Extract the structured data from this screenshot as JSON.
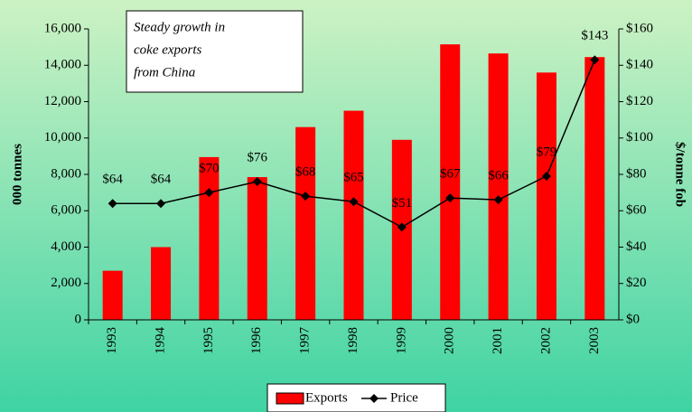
{
  "chart_data": {
    "type": "bar",
    "annotation": [
      "Steady growth in",
      "coke exports",
      "from China"
    ],
    "ylabel": "000 tonnes",
    "y2label": "$/tonne fob",
    "categories": [
      "1993",
      "1994",
      "1995",
      "1996",
      "1997",
      "1998",
      "1999",
      "2000",
      "2001",
      "2002",
      "2003"
    ],
    "series": [
      {
        "name": "Exports",
        "type": "bar",
        "color": "#ff0000",
        "values": [
          2700,
          4000,
          8950,
          7850,
          10600,
          11500,
          9900,
          15150,
          14650,
          13600,
          14450
        ]
      },
      {
        "name": "Price",
        "type": "line",
        "axis": "y2",
        "color": "#000000",
        "values": [
          64,
          64,
          70,
          76,
          68,
          65,
          51,
          67,
          66,
          79,
          143
        ],
        "value_labels": [
          "$64",
          "$64",
          "$70",
          "$76",
          "$68",
          "$65",
          "$51",
          "$67",
          "$66",
          "$79",
          "$143"
        ]
      }
    ],
    "ylim": [
      0,
      16000
    ],
    "yticks": [
      0,
      {
        "value": 2000,
        "label": "2,000"
      },
      {
        "value": 4000,
        "label": "4,000"
      },
      {
        "value": 6000,
        "label": "6,000"
      },
      {
        "value": 8000,
        "label": "8,000"
      },
      {
        "value": 10000,
        "label": "10,000"
      },
      {
        "value": 12000,
        "label": "12,000"
      },
      {
        "value": 14000,
        "label": "14,000"
      },
      {
        "value": 16000,
        "label": "16,000"
      }
    ],
    "y2lim": [
      0,
      160
    ],
    "y2ticks": [
      {
        "value": 0,
        "label": "$0"
      },
      {
        "value": 20,
        "label": "$20"
      },
      {
        "value": 40,
        "label": "$40"
      },
      {
        "value": 60,
        "label": "$60"
      },
      {
        "value": 80,
        "label": "$80"
      },
      {
        "value": 100,
        "label": "$100"
      },
      {
        "value": 120,
        "label": "$120"
      },
      {
        "value": 140,
        "label": "$140"
      },
      {
        "value": 160,
        "label": "$160"
      }
    ],
    "legend": "bottom"
  }
}
